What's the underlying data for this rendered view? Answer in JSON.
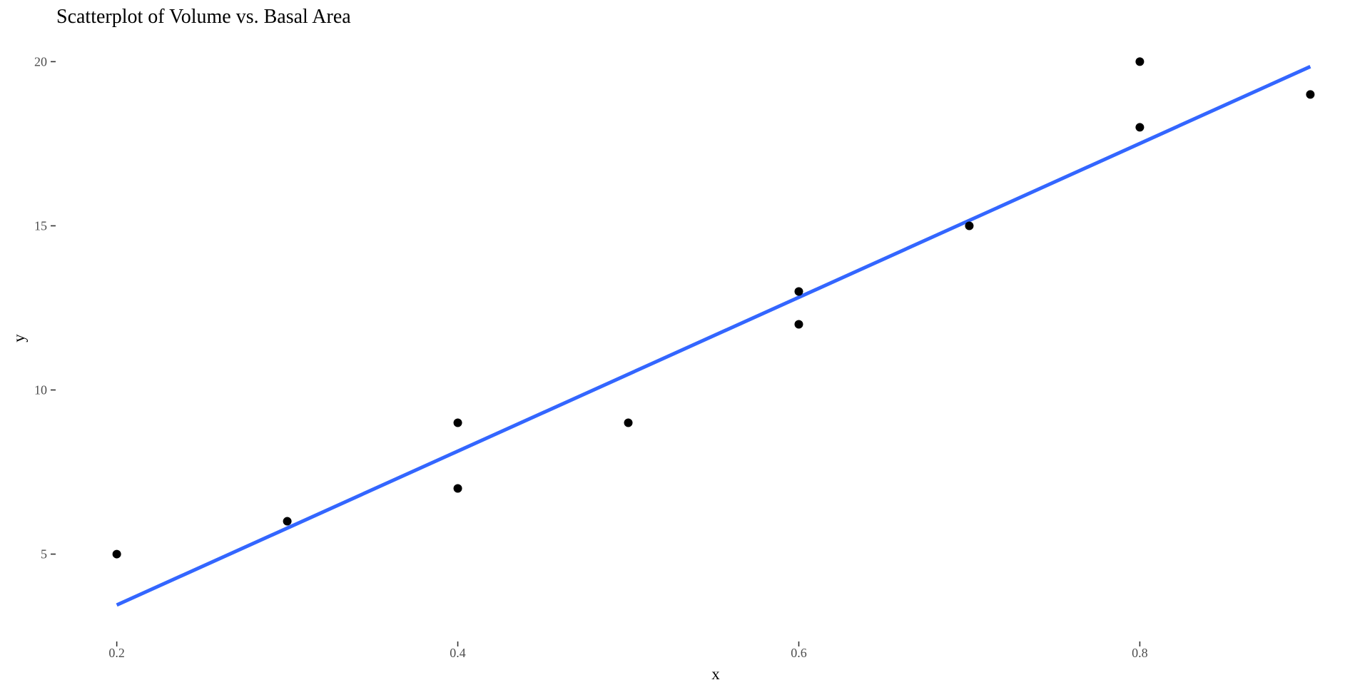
{
  "chart_data": {
    "type": "scatter",
    "title": "Scatterplot of Volume vs. Basal Area",
    "xlabel": "x",
    "ylabel": "y",
    "xlim": [
      0.165,
      0.935
    ],
    "ylim": [
      2.1,
      20.9
    ],
    "x_ticks": [
      0.2,
      0.4,
      0.6,
      0.8
    ],
    "x_tick_labels": [
      "0.2",
      "0.4",
      "0.6",
      "0.8"
    ],
    "y_ticks": [
      5,
      10,
      15,
      20
    ],
    "y_tick_labels": [
      "5",
      "10",
      "15",
      "20"
    ],
    "grid": false,
    "legend": "none",
    "points": {
      "x": [
        0.2,
        0.3,
        0.4,
        0.4,
        0.5,
        0.6,
        0.6,
        0.7,
        0.8,
        0.8,
        0.9
      ],
      "y": [
        5,
        6,
        7,
        9,
        9,
        12,
        13,
        15,
        18,
        20,
        19
      ],
      "color": "#000000"
    },
    "fit_line": {
      "x": [
        0.2,
        0.9
      ],
      "y": [
        3.45,
        19.85
      ],
      "color": "#3366FF"
    }
  }
}
